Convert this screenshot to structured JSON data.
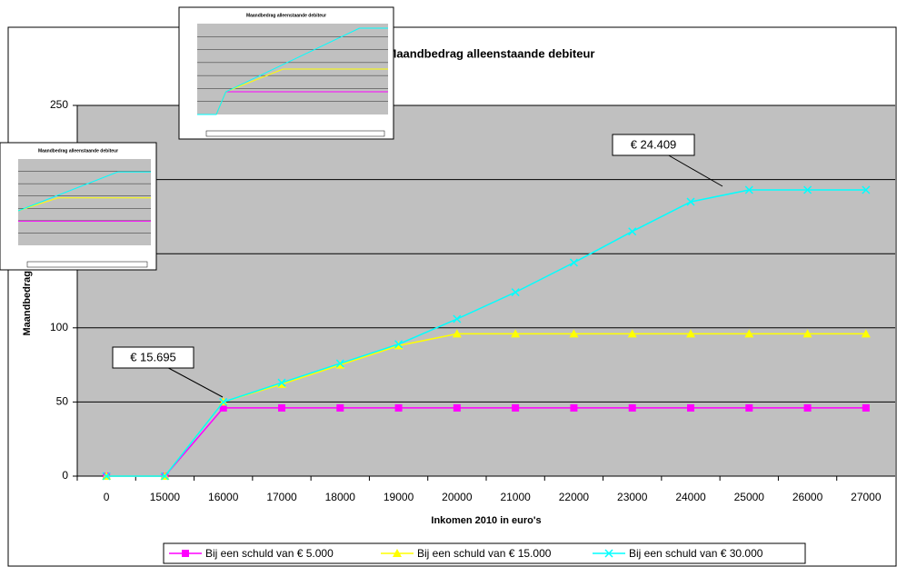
{
  "chart_data": {
    "type": "line",
    "title": "Maandbedrag alleenstaande debiteur",
    "x_label": "Inkomen 2010 in euro's",
    "y_label": "Maandbedrag 2010",
    "categories": [
      "0",
      "15000",
      "16000",
      "17000",
      "18000",
      "19000",
      "20000",
      "21000",
      "22000",
      "23000",
      "24000",
      "25000",
      "26000",
      "27000"
    ],
    "series": [
      {
        "name": "Bij een schuld van € 5.000",
        "color": "#ff00ff",
        "marker": "square",
        "values": [
          0,
          0,
          46,
          46,
          46,
          46,
          46,
          46,
          46,
          46,
          46,
          46,
          46,
          46
        ]
      },
      {
        "name": "Bij een schuld van € 15.000",
        "color": "#ffff00",
        "marker": "triangle",
        "values": [
          0,
          0,
          50,
          62,
          75,
          88,
          96,
          96,
          96,
          96,
          96,
          96,
          96,
          96
        ]
      },
      {
        "name": "Bij een schuld van € 30.000",
        "color": "#00ffff",
        "marker": "x",
        "values": [
          0,
          0,
          50,
          63,
          76,
          89,
          106,
          124,
          144,
          165,
          185,
          193,
          193,
          193
        ]
      }
    ],
    "ylim": [
      0,
      250
    ],
    "yticks": [
      0,
      50,
      100,
      150,
      200,
      250
    ],
    "grid": true,
    "annotations": [
      {
        "text": "€ 24.409"
      },
      {
        "text": "€ 15.695"
      }
    ],
    "legend": "bottom"
  },
  "thumbnails": [
    {
      "title": "Maandbedrag alleenstaande debiteur"
    },
    {
      "title": "Maandbedrag alleenstaande debiteur"
    }
  ]
}
